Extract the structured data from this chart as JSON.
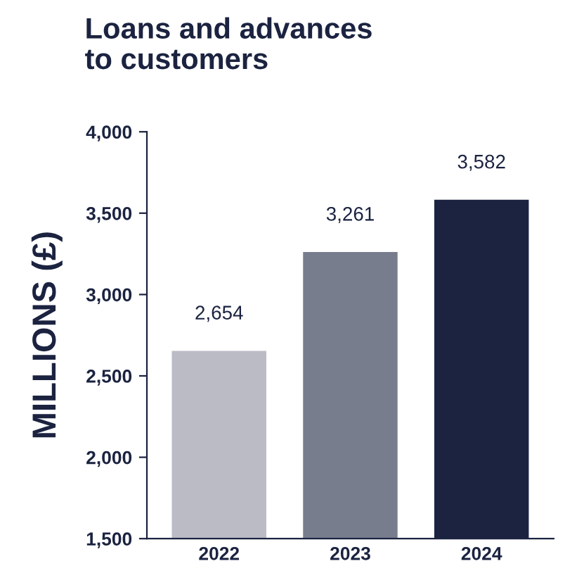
{
  "chart_data": {
    "type": "bar",
    "title": "Loans and advances\nto customers",
    "ylabel": "MILLIONS (£)",
    "categories": [
      "2022",
      "2023",
      "2024"
    ],
    "values": [
      2654,
      3261,
      3582
    ],
    "colors": [
      "#babbc5",
      "#777d8d",
      "#1b2340"
    ],
    "value_labels": [
      "2,654",
      "3,261",
      "3,582"
    ],
    "ylim": [
      1500,
      4000
    ],
    "yticks": [
      {
        "value": 1500,
        "label": "1,500"
      },
      {
        "value": 2000,
        "label": "2,000"
      },
      {
        "value": 2500,
        "label": "2,500"
      },
      {
        "value": 3000,
        "label": "3,000"
      },
      {
        "value": 3500,
        "label": "3,500"
      },
      {
        "value": 4000,
        "label": "4,000"
      }
    ],
    "grid": false,
    "legend": false
  }
}
